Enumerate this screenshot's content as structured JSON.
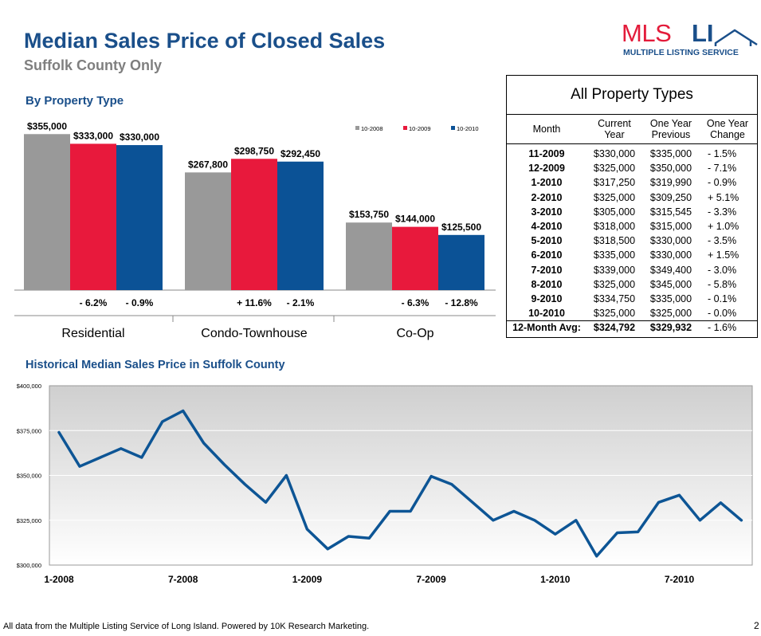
{
  "header": {
    "title": "Median Sales Price of Closed Sales",
    "subtitle": "Suffolk County Only"
  },
  "logo": {
    "mls": "MLS",
    "li": "LI",
    "tagline": "MULTIPLE LISTING SERVICE",
    "icon": "house-outline-icon"
  },
  "colors": {
    "gray": "#999999",
    "red": "#e8193c",
    "blue": "#0b5296",
    "line": "#0d5595",
    "title": "#1a4f8a"
  },
  "chart_data": [
    {
      "type": "bar",
      "title": "By Property Type",
      "categories": [
        "Residential",
        "Condo-Townhouse",
        "Co-Op"
      ],
      "series": [
        {
          "name": "10-2008",
          "color": "#999999",
          "values": [
            355000,
            267800,
            153750
          ],
          "labels": [
            "$355,000",
            "$267,800",
            "$153,750"
          ]
        },
        {
          "name": "10-2009",
          "color": "#e8193c",
          "values": [
            333000,
            298750,
            144000
          ],
          "labels": [
            "$333,000",
            "$298,750",
            "$144,000"
          ]
        },
        {
          "name": "10-2010",
          "color": "#0b5296",
          "values": [
            330000,
            292450,
            125500
          ],
          "labels": [
            "$330,000",
            "$292,450",
            "$125,500"
          ]
        }
      ],
      "changes": [
        {
          "vs_2009": "- 6.2%",
          "vs_2010": "- 0.9%"
        },
        {
          "vs_2009": "+ 11.6%",
          "vs_2010": "- 2.1%"
        },
        {
          "vs_2009": "- 6.3%",
          "vs_2010": "- 12.8%"
        }
      ],
      "ylim": [
        0,
        370000
      ],
      "legend": "top-right"
    },
    {
      "type": "line",
      "title": "Historical Median Sales Price in Suffolk County",
      "x": [
        "2008-01",
        "2008-02",
        "2008-03",
        "2008-04",
        "2008-05",
        "2008-06",
        "2008-07",
        "2008-08",
        "2008-09",
        "2008-10",
        "2008-11",
        "2008-12",
        "2009-01",
        "2009-02",
        "2009-03",
        "2009-04",
        "2009-05",
        "2009-06",
        "2009-07",
        "2009-08",
        "2009-09",
        "2009-10",
        "2009-11",
        "2009-12",
        "2010-01",
        "2010-02",
        "2010-03",
        "2010-04",
        "2010-05",
        "2010-06",
        "2010-07",
        "2010-08",
        "2010-09",
        "2010-10"
      ],
      "values": [
        374000,
        355000,
        360000,
        365000,
        360000,
        380000,
        386000,
        368000,
        356000,
        345000,
        335000,
        350000,
        320000,
        309000,
        316000,
        315000,
        330000,
        330000,
        349500,
        345000,
        335000,
        325000,
        330000,
        325000,
        317250,
        325000,
        305000,
        318000,
        318500,
        335000,
        339000,
        325000,
        334750,
        325000
      ],
      "ylim": [
        300000,
        400000
      ],
      "yticks": [
        300000,
        325000,
        350000,
        375000,
        400000
      ],
      "ytick_labels": [
        "$300,000",
        "$325,000",
        "$350,000",
        "$375,000",
        "$400,000"
      ],
      "xtick_labels": [
        "1-2008",
        "7-2008",
        "1-2009",
        "7-2009",
        "1-2010",
        "7-2010"
      ],
      "xtick_index": [
        0,
        6,
        12,
        18,
        24,
        30
      ],
      "grid": true
    }
  ],
  "table": {
    "title": "All Property Types",
    "headers": [
      "Month",
      "Current Year",
      "One Year Previous",
      "One Year Change"
    ],
    "rows": [
      [
        "11-2009",
        "$330,000",
        "$335,000",
        "- 1.5%"
      ],
      [
        "12-2009",
        "$325,000",
        "$350,000",
        "- 7.1%"
      ],
      [
        "1-2010",
        "$317,250",
        "$319,990",
        "- 0.9%"
      ],
      [
        "2-2010",
        "$325,000",
        "$309,250",
        "+ 5.1%"
      ],
      [
        "3-2010",
        "$305,000",
        "$315,545",
        "- 3.3%"
      ],
      [
        "4-2010",
        "$318,000",
        "$315,000",
        "+ 1.0%"
      ],
      [
        "5-2010",
        "$318,500",
        "$330,000",
        "- 3.5%"
      ],
      [
        "6-2010",
        "$335,000",
        "$330,000",
        "+ 1.5%"
      ],
      [
        "7-2010",
        "$339,000",
        "$349,400",
        "- 3.0%"
      ],
      [
        "8-2010",
        "$325,000",
        "$345,000",
        "- 5.8%"
      ],
      [
        "9-2010",
        "$334,750",
        "$335,000",
        "- 0.1%"
      ],
      [
        "10-2010",
        "$325,000",
        "$325,000",
        "- 0.0%"
      ]
    ],
    "footer": [
      "12-Month Avg:",
      "$324,792",
      "$329,932",
      "- 1.6%"
    ]
  },
  "footer": {
    "text": "All data from the Multiple Listing Service of Long Island. Powered by 10K Research Marketing.",
    "page": "2"
  }
}
